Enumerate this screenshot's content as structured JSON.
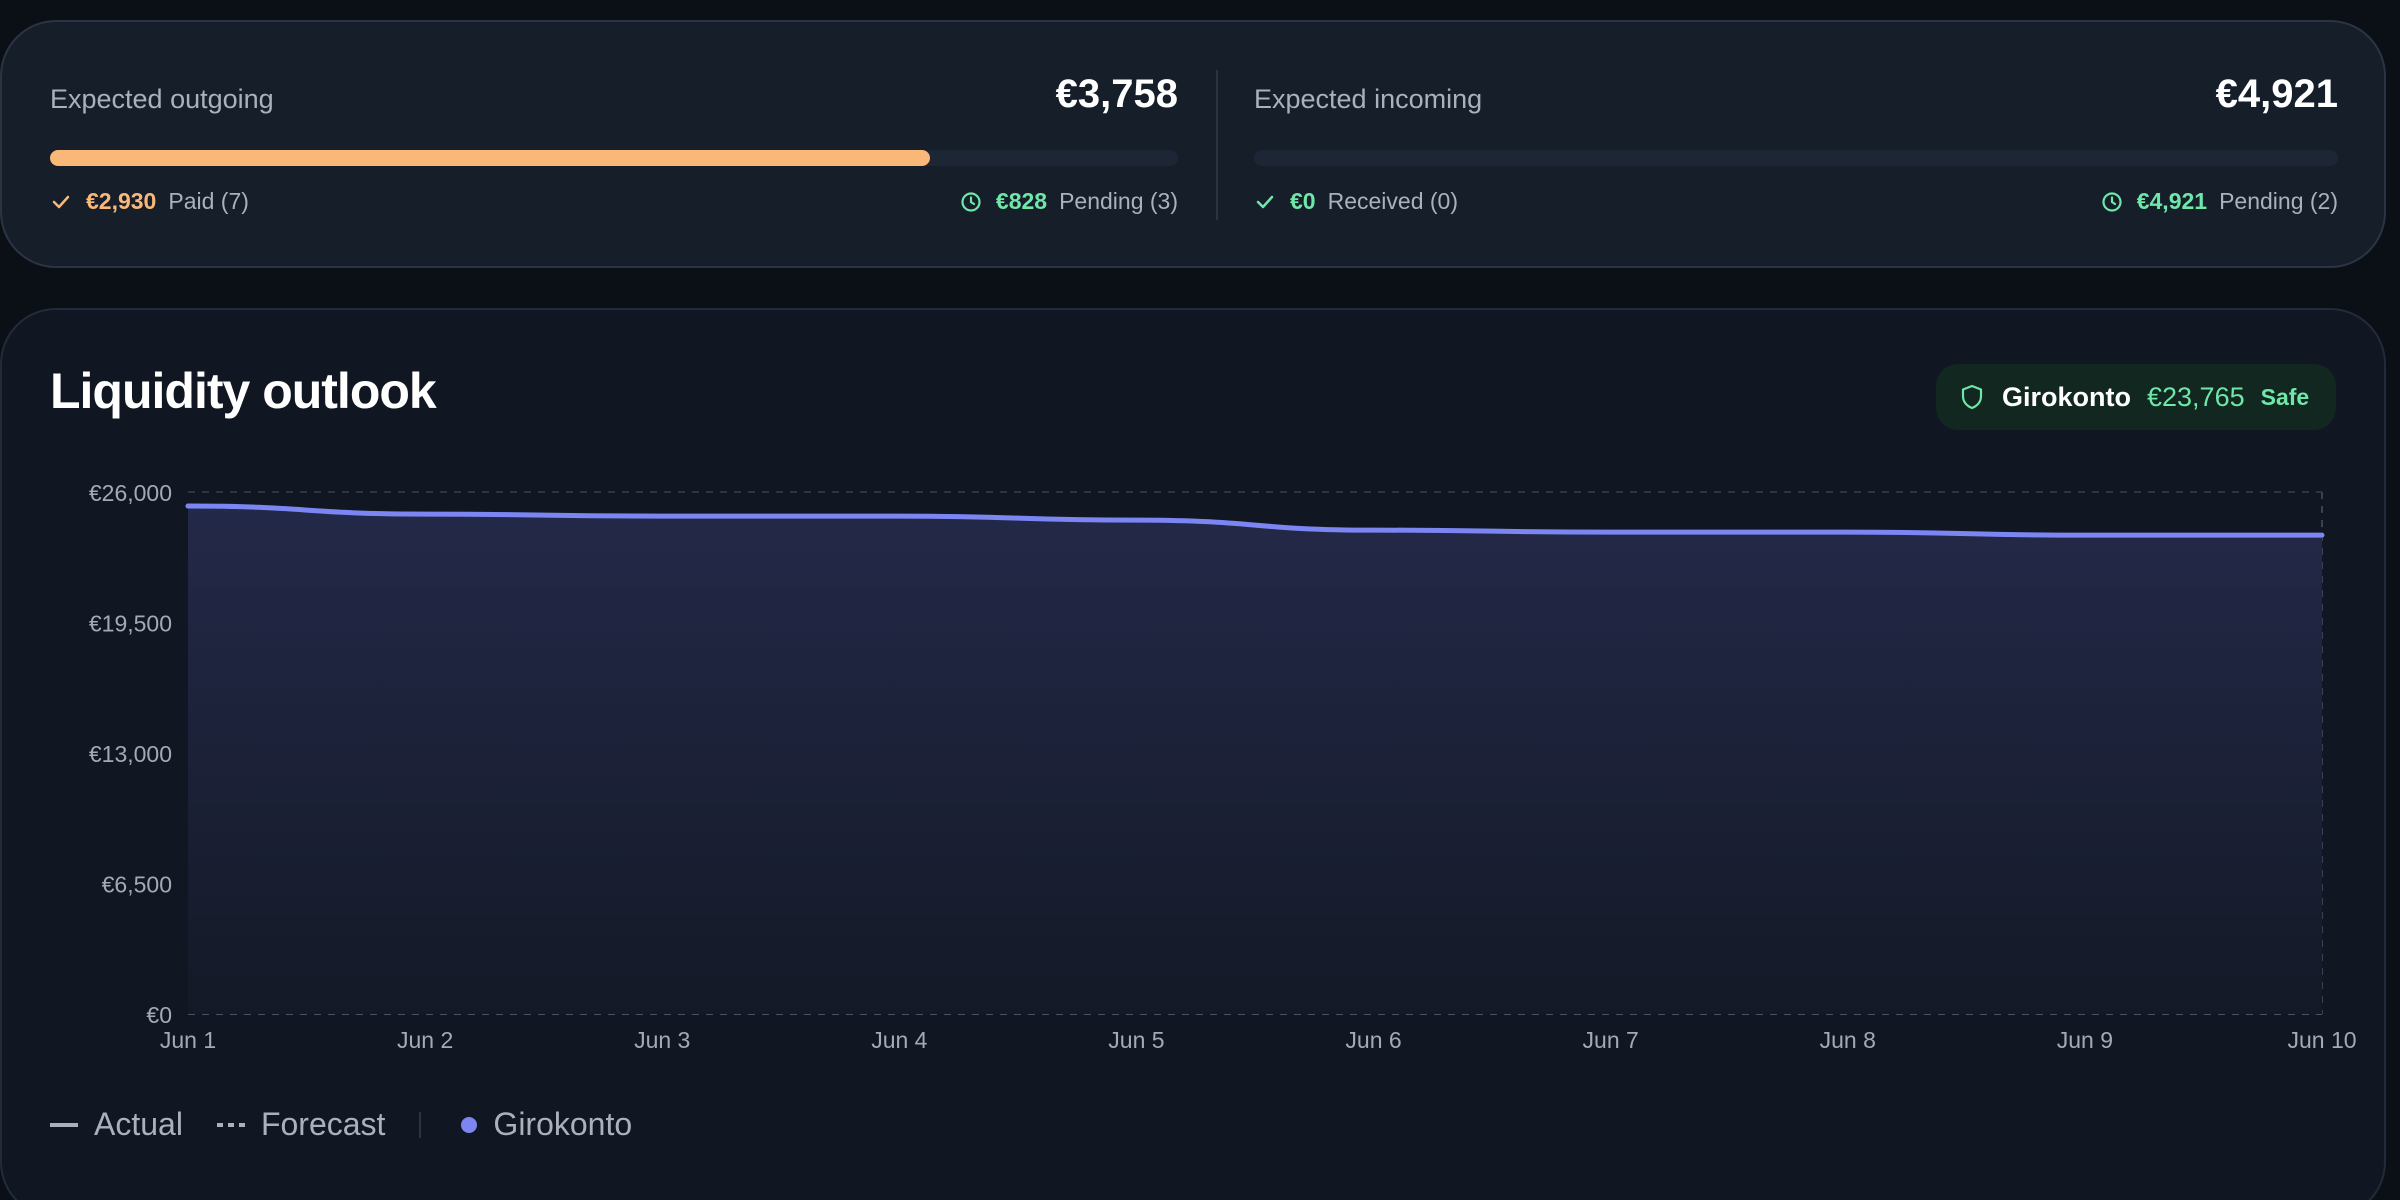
{
  "outgoing": {
    "label": "Expected outgoing",
    "amount": "€3,758",
    "progress": 0.78,
    "paid_amount": "€2,930",
    "paid_label": "Paid (7)",
    "pending_amount": "€828",
    "pending_label": "Pending (3)",
    "icons": {
      "paid": "check-icon",
      "pending": "clock-icon"
    }
  },
  "incoming": {
    "label": "Expected incoming",
    "amount": "€4,921",
    "progress": 0,
    "received_amount": "€0",
    "received_label": "Received (0)",
    "pending_amount": "€4,921",
    "pending_label": "Pending (2)",
    "icons": {
      "received": "check-icon",
      "pending": "clock-icon"
    }
  },
  "chart": {
    "title": "Liquidity outlook",
    "account": {
      "icon": "shield-icon",
      "name": "Girokonto",
      "balance": "€23,765",
      "status": "Safe"
    },
    "legend": {
      "actual": "Actual",
      "forecast": "Forecast",
      "series": "Girokonto"
    }
  },
  "colors": {
    "accent_orange": "#f9b877",
    "positive_green": "#6ee7a8",
    "series": "#7b86f2"
  },
  "chart_data": {
    "type": "area",
    "x": [
      "Jun 1",
      "Jun 2",
      "Jun 3",
      "Jun 4",
      "Jun 5",
      "Jun 6",
      "Jun 7",
      "Jun 8",
      "Jun 9",
      "Jun 10"
    ],
    "yticks": [
      "€0",
      "€6,500",
      "€13,000",
      "€19,500",
      "€26,000"
    ],
    "ylim": [
      0,
      26000
    ],
    "series": [
      {
        "name": "Girokonto",
        "values": [
          25300,
          24900,
          24800,
          24800,
          24600,
          24100,
          24000,
          24000,
          23850,
          23850
        ]
      }
    ],
    "grid": true
  }
}
